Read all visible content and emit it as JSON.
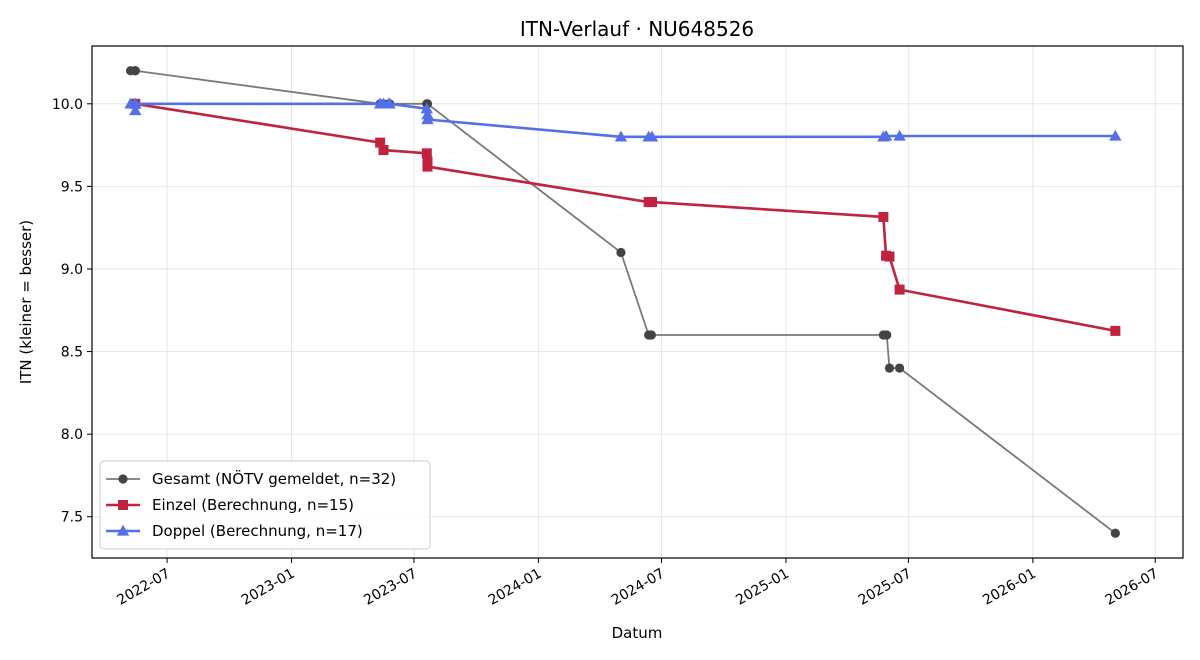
{
  "chart_data": {
    "type": "line",
    "title": "ITN-Verlauf · NU648526",
    "xlabel": "Datum",
    "ylabel": "ITN  (kleiner = besser)",
    "xlim": [
      "2022-03-12",
      "2026-08-11"
    ],
    "ylim": [
      7.25,
      10.35
    ],
    "x_ticks": [
      "2022-07-01",
      "2023-01-01",
      "2023-07-01",
      "2024-01-01",
      "2024-07-01",
      "2025-01-01",
      "2025-07-01",
      "2026-01-01",
      "2026-07-01"
    ],
    "x_tick_labels": [
      "2022-07",
      "2023-01",
      "2023-07",
      "2024-01",
      "2024-07",
      "2025-01",
      "2025-07",
      "2026-01",
      "2026-07"
    ],
    "y_ticks": [
      7.5,
      8.0,
      8.5,
      9.0,
      9.5,
      10.0
    ],
    "y_tick_labels": [
      "7.5",
      "8.0",
      "8.5",
      "9.0",
      "9.5",
      "10.0"
    ],
    "grid": true,
    "legend_position": "lower-left",
    "series": [
      {
        "name": "Gesamt (NÖTV gemeldet, n=32)",
        "color": "#7a7a7a",
        "marker_color": "#444444",
        "marker": "circle",
        "points": [
          {
            "x": "2022-05-08",
            "y": 10.2
          },
          {
            "x": "2022-05-15",
            "y": 10.2
          },
          {
            "x": "2022-05-15",
            "y": 10.2
          },
          {
            "x": "2023-05-12",
            "y": 10.0
          },
          {
            "x": "2023-05-17",
            "y": 10.0
          },
          {
            "x": "2023-05-25",
            "y": 10.0
          },
          {
            "x": "2023-05-26",
            "y": 10.0
          },
          {
            "x": "2023-07-20",
            "y": 10.0
          },
          {
            "x": "2023-07-21",
            "y": 10.0
          },
          {
            "x": "2024-05-02",
            "y": 9.1
          },
          {
            "x": "2024-06-12",
            "y": 8.6
          },
          {
            "x": "2024-06-16",
            "y": 8.6
          },
          {
            "x": "2025-05-25",
            "y": 8.6
          },
          {
            "x": "2025-05-30",
            "y": 8.6
          },
          {
            "x": "2025-06-03",
            "y": 8.4
          },
          {
            "x": "2025-06-18",
            "y": 8.4
          },
          {
            "x": "2026-05-03",
            "y": 7.4
          }
        ]
      },
      {
        "name": "Einzel (Berechnung, n=15)",
        "color": "#c0223f",
        "marker_color": "#c0223f",
        "marker": "square",
        "points": [
          {
            "x": "2022-05-15",
            "y": 10.0
          },
          {
            "x": "2023-05-12",
            "y": 9.765
          },
          {
            "x": "2023-05-17",
            "y": 9.72
          },
          {
            "x": "2023-07-20",
            "y": 9.7
          },
          {
            "x": "2023-07-21",
            "y": 9.65
          },
          {
            "x": "2023-07-21",
            "y": 9.62
          },
          {
            "x": "2024-06-12",
            "y": 9.405
          },
          {
            "x": "2024-06-17",
            "y": 9.405
          },
          {
            "x": "2025-05-25",
            "y": 9.315
          },
          {
            "x": "2025-05-29",
            "y": 9.08
          },
          {
            "x": "2025-06-03",
            "y": 9.075
          },
          {
            "x": "2025-06-18",
            "y": 8.875
          },
          {
            "x": "2026-05-03",
            "y": 8.625
          }
        ]
      },
      {
        "name": "Doppel (Berechnung, n=17)",
        "color": "#5470e8",
        "marker_color": "#5470e8",
        "marker": "triangle",
        "points": [
          {
            "x": "2022-05-08",
            "y": 10.0
          },
          {
            "x": "2022-05-15",
            "y": 10.0
          },
          {
            "x": "2022-05-15",
            "y": 9.96
          },
          {
            "x": "2022-05-15",
            "y": 10.0
          },
          {
            "x": "2023-05-12",
            "y": 10.0
          },
          {
            "x": "2023-05-17",
            "y": 10.0
          },
          {
            "x": "2023-05-25",
            "y": 10.0
          },
          {
            "x": "2023-05-26",
            "y": 10.0
          },
          {
            "x": "2023-07-20",
            "y": 9.97
          },
          {
            "x": "2023-07-21",
            "y": 9.935
          },
          {
            "x": "2023-07-21",
            "y": 9.905
          },
          {
            "x": "2024-05-02",
            "y": 9.8
          },
          {
            "x": "2024-06-12",
            "y": 9.8
          },
          {
            "x": "2024-06-17",
            "y": 9.8
          },
          {
            "x": "2025-05-25",
            "y": 9.8
          },
          {
            "x": "2025-05-29",
            "y": 9.805
          },
          {
            "x": "2025-06-18",
            "y": 9.805
          },
          {
            "x": "2026-05-03",
            "y": 9.805
          }
        ]
      }
    ]
  }
}
